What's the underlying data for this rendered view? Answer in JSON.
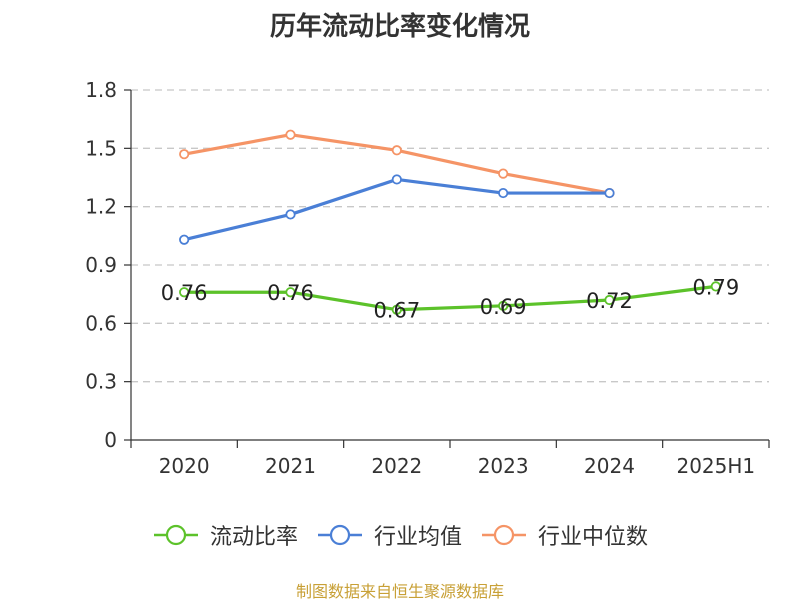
{
  "chart_data": {
    "type": "line",
    "title": "历年流动比率变化情况",
    "categories": [
      "2020",
      "2021",
      "2022",
      "2023",
      "2024",
      "2025H1"
    ],
    "y_ticks": [
      "0",
      "0.3",
      "0.6",
      "0.9",
      "1.2",
      "1.5",
      "1.8"
    ],
    "ylim": [
      0,
      1.8
    ],
    "grid": "horizontal-dashed",
    "legend_position": "bottom",
    "series": [
      {
        "name": "流动比率",
        "color": "#5cc22a",
        "values": [
          0.76,
          0.76,
          0.67,
          0.69,
          0.72,
          0.79
        ],
        "data_labels": [
          "0.76",
          "0.76",
          "0.67",
          "0.69",
          "0.72",
          "0.79"
        ]
      },
      {
        "name": "行业均值",
        "color": "#4a7fd6",
        "values": [
          1.03,
          1.16,
          1.34,
          1.27,
          1.27,
          null
        ]
      },
      {
        "name": "行业中位数",
        "color": "#f59466",
        "values": [
          1.47,
          1.57,
          1.49,
          1.37,
          1.27,
          null
        ]
      }
    ]
  },
  "source_note": "制图数据来自恒生聚源数据库"
}
